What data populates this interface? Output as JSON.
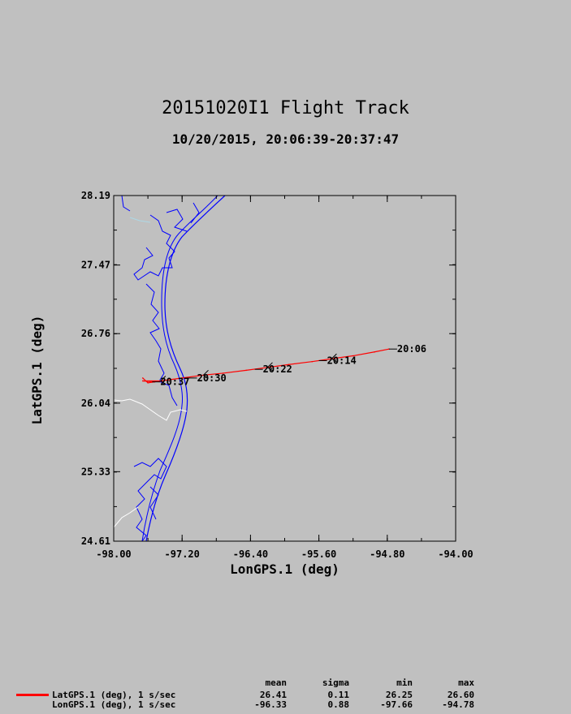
{
  "title": "20151020I1 Flight Track",
  "subtitle": "10/20/2015, 20:06:39-20:37:47",
  "colors": {
    "background": "#c0c0c0",
    "track": "#ff0000",
    "coastline": "#0000ff",
    "border": "#ffffff",
    "river": "#add8e6"
  },
  "chart_data": {
    "type": "line",
    "title": "20151020I1 Flight Track",
    "subtitle": "10/20/2015, 20:06:39-20:37:47",
    "xlabel": "LonGPS.1 (deg)",
    "ylabel": "LatGPS.1 (deg)",
    "xlim": [
      -98.0,
      -94.0
    ],
    "ylim": [
      24.61,
      28.19
    ],
    "xticks": [
      "-98.00",
      "-97.20",
      "-96.40",
      "-95.60",
      "-94.80",
      "-94.00"
    ],
    "yticks": [
      "28.19",
      "27.47",
      "26.76",
      "26.04",
      "25.33",
      "24.61"
    ],
    "grid": false,
    "series": [
      {
        "name": "LatGPS.1 (deg), 1 s/sec",
        "x": [
          -94.78,
          -94.95,
          -95.2,
          -95.45,
          -95.68,
          -95.95,
          -96.2,
          -96.45,
          -96.72,
          -96.95,
          -97.2,
          -97.45,
          -97.66,
          -97.52,
          -97.6,
          -97.66
        ],
        "y": [
          26.6,
          26.57,
          26.53,
          26.5,
          26.47,
          26.44,
          26.41,
          26.38,
          26.35,
          26.33,
          26.3,
          26.27,
          26.27,
          26.26,
          26.25,
          26.3
        ]
      }
    ],
    "time_labels": [
      {
        "text": "20:06",
        "x": -94.78,
        "y": 26.6
      },
      {
        "text": "20:14",
        "x": -95.6,
        "y": 26.48
      },
      {
        "text": "20:22",
        "x": -96.35,
        "y": 26.39
      },
      {
        "text": "20:30",
        "x": -97.12,
        "y": 26.3
      },
      {
        "text": "20:37",
        "x": -97.55,
        "y": 26.26
      }
    ]
  },
  "stats": {
    "headers": [
      "mean",
      "sigma",
      "min",
      "max"
    ],
    "rows": [
      {
        "label": "LatGPS.1 (deg), 1 s/sec",
        "values": [
          "26.41",
          "0.11",
          "26.25",
          "26.60"
        ]
      },
      {
        "label": "LonGPS.1 (deg), 1 s/sec",
        "values": [
          "-96.33",
          "0.88",
          "-97.66",
          "-94.78"
        ]
      }
    ]
  }
}
